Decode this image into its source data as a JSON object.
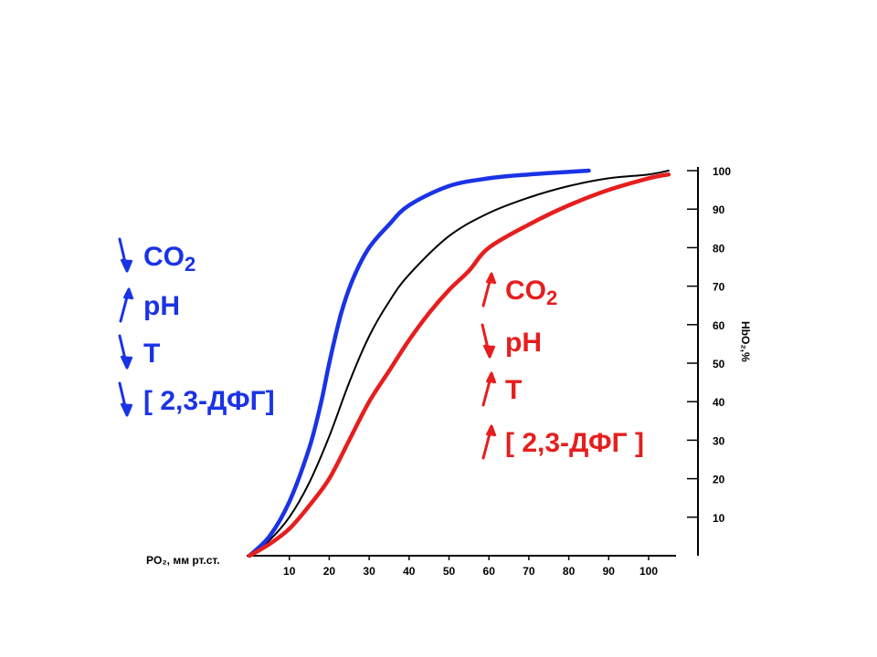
{
  "chart_data": {
    "type": "line",
    "title": "",
    "xlabel": "PO₂, мм рт.ст.",
    "ylabel": "HbO₂,%",
    "xlim": [
      0,
      105
    ],
    "ylim": [
      0,
      100
    ],
    "x_ticks": [
      10,
      20,
      30,
      40,
      50,
      60,
      70,
      80,
      90,
      100
    ],
    "y_ticks": [
      10,
      20,
      30,
      40,
      50,
      60,
      70,
      80,
      90,
      100
    ],
    "series": [
      {
        "color": "#000000",
        "points": [
          [
            0,
            0
          ],
          [
            5,
            4
          ],
          [
            10,
            10
          ],
          [
            15,
            19
          ],
          [
            20,
            31
          ],
          [
            25,
            45
          ],
          [
            30,
            57
          ],
          [
            35,
            66
          ],
          [
            40,
            73
          ],
          [
            50,
            83
          ],
          [
            60,
            89
          ],
          [
            70,
            93
          ],
          [
            80,
            96
          ],
          [
            90,
            98
          ],
          [
            100,
            99
          ],
          [
            105,
            100
          ]
        ]
      },
      {
        "color": "#1a33e6",
        "points": [
          [
            0,
            0
          ],
          [
            5,
            5
          ],
          [
            10,
            14
          ],
          [
            15,
            28
          ],
          [
            18,
            40
          ],
          [
            20,
            50
          ],
          [
            23,
            63
          ],
          [
            26,
            72
          ],
          [
            30,
            80
          ],
          [
            35,
            86
          ],
          [
            40,
            91
          ],
          [
            50,
            96
          ],
          [
            60,
            98
          ],
          [
            70,
            99
          ],
          [
            85,
            100
          ]
        ]
      },
      {
        "color": "#e61e1e",
        "points": [
          [
            0,
            0
          ],
          [
            5,
            3
          ],
          [
            10,
            7
          ],
          [
            15,
            13
          ],
          [
            20,
            20
          ],
          [
            25,
            30
          ],
          [
            30,
            40
          ],
          [
            35,
            48
          ],
          [
            40,
            56
          ],
          [
            45,
            63
          ],
          [
            50,
            69
          ],
          [
            55,
            74
          ],
          [
            60,
            80
          ],
          [
            70,
            86
          ],
          [
            80,
            91
          ],
          [
            90,
            95
          ],
          [
            100,
            98
          ],
          [
            105,
            99
          ]
        ]
      }
    ]
  },
  "legend_left": {
    "items": [
      {
        "text": "CO",
        "sub": "2",
        "dir": "down"
      },
      {
        "text": "pH",
        "sub": "",
        "dir": "up"
      },
      {
        "text": "T",
        "sub": "",
        "dir": "down"
      },
      {
        "text": "[ 2,3-ДФГ]",
        "sub": "",
        "dir": "down"
      }
    ],
    "color": "#1a33e6"
  },
  "legend_right": {
    "items": [
      {
        "text": "CO",
        "sub": "2",
        "dir": "up"
      },
      {
        "text": "pH",
        "sub": "",
        "dir": "down"
      },
      {
        "text": "T",
        "sub": "",
        "dir": "up"
      },
      {
        "text": "[ 2,3-ДФГ ]",
        "sub": "",
        "dir": "up"
      }
    ],
    "color": "#e61e1e"
  }
}
